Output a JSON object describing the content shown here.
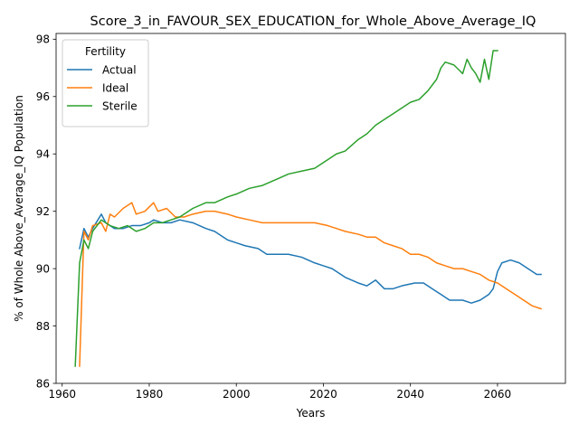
{
  "chart_data": {
    "type": "line",
    "title": "Score_3_in_FAVOUR_SEX_EDUCATION_for_Whole_Above_Average_IQ",
    "xlabel": "Years",
    "ylabel": "% of Whole Above_Average_IQ Population",
    "xlim": [
      1958.6,
      2075.6
    ],
    "ylim": [
      86.0,
      98.2
    ],
    "xticks": [
      1960,
      1980,
      2000,
      2020,
      2040,
      2060
    ],
    "yticks": [
      86,
      88,
      90,
      92,
      94,
      96,
      98
    ],
    "grid": false,
    "legend": {
      "title": "Fertility",
      "placement": "upper left"
    },
    "series": [
      {
        "name": "Actual",
        "color": "#1f77b4",
        "x": [
          1964,
          1965,
          1966,
          1967,
          1969,
          1970,
          1972,
          1974,
          1976,
          1978,
          1980,
          1981,
          1983,
          1985,
          1987,
          1990,
          1993,
          1995,
          1998,
          2000,
          2002,
          2005,
          2007,
          2009,
          2012,
          2015,
          2018,
          2020,
          2022,
          2025,
          2028,
          2030,
          2032,
          2034,
          2036,
          2038,
          2041,
          2043,
          2045,
          2047,
          2049,
          2052,
          2054,
          2056,
          2058,
          2059,
          2060,
          2061,
          2063,
          2065,
          2067,
          2069,
          2070
        ],
        "y": [
          90.7,
          91.4,
          91.1,
          91.4,
          91.9,
          91.6,
          91.4,
          91.4,
          91.5,
          91.5,
          91.6,
          91.7,
          91.6,
          91.6,
          91.7,
          91.6,
          91.4,
          91.3,
          91.0,
          90.9,
          90.8,
          90.7,
          90.5,
          90.5,
          90.5,
          90.4,
          90.2,
          90.1,
          90.0,
          89.7,
          89.5,
          89.4,
          89.6,
          89.3,
          89.3,
          89.4,
          89.5,
          89.5,
          89.3,
          89.1,
          88.9,
          88.9,
          88.8,
          88.9,
          89.1,
          89.3,
          89.9,
          90.2,
          90.3,
          90.2,
          90.0,
          89.8,
          89.8
        ]
      },
      {
        "name": "Ideal",
        "color": "#ff7f0e",
        "x": [
          1964,
          1965,
          1966,
          1967,
          1969,
          1970,
          1971,
          1972,
          1974,
          1976,
          1977,
          1979,
          1981,
          1982,
          1984,
          1986,
          1988,
          1990,
          1993,
          1995,
          1998,
          2000,
          2003,
          2006,
          2009,
          2012,
          2015,
          2018,
          2021,
          2023,
          2025,
          2028,
          2030,
          2032,
          2034,
          2036,
          2038,
          2040,
          2042,
          2044,
          2046,
          2048,
          2050,
          2052,
          2054,
          2056,
          2058,
          2060,
          2062,
          2064,
          2066,
          2068,
          2070
        ],
        "y": [
          86.6,
          91.3,
          91.0,
          91.5,
          91.6,
          91.3,
          91.9,
          91.8,
          92.1,
          92.3,
          91.9,
          92.0,
          92.3,
          92.0,
          92.1,
          91.8,
          91.8,
          91.9,
          92.0,
          92.0,
          91.9,
          91.8,
          91.7,
          91.6,
          91.6,
          91.6,
          91.6,
          91.6,
          91.5,
          91.4,
          91.3,
          91.2,
          91.1,
          91.1,
          90.9,
          90.8,
          90.7,
          90.5,
          90.5,
          90.4,
          90.2,
          90.1,
          90.0,
          90.0,
          89.9,
          89.8,
          89.6,
          89.5,
          89.3,
          89.1,
          88.9,
          88.7,
          88.6
        ]
      },
      {
        "name": "Sterile",
        "color": "#2ca02c",
        "x": [
          1963,
          1964,
          1965,
          1966,
          1967,
          1969,
          1971,
          1973,
          1975,
          1977,
          1979,
          1981,
          1983,
          1985,
          1987,
          1990,
          1993,
          1995,
          1998,
          2000,
          2003,
          2006,
          2009,
          2012,
          2015,
          2018,
          2021,
          2023,
          2025,
          2028,
          2030,
          2032,
          2034,
          2036,
          2038,
          2040,
          2042,
          2044,
          2046,
          2047,
          2048,
          2050,
          2052,
          2053,
          2054,
          2055,
          2056,
          2057,
          2058,
          2059,
          2060
        ],
        "y": [
          86.6,
          90.2,
          91.0,
          90.7,
          91.3,
          91.7,
          91.5,
          91.4,
          91.5,
          91.3,
          91.4,
          91.6,
          91.6,
          91.7,
          91.8,
          92.1,
          92.3,
          92.3,
          92.5,
          92.6,
          92.8,
          92.9,
          93.1,
          93.3,
          93.4,
          93.5,
          93.8,
          94.0,
          94.1,
          94.5,
          94.7,
          95.0,
          95.2,
          95.4,
          95.6,
          95.8,
          95.9,
          96.2,
          96.6,
          97.0,
          97.2,
          97.1,
          96.8,
          97.3,
          97.0,
          96.8,
          96.5,
          97.3,
          96.6,
          97.6,
          97.6
        ]
      }
    ]
  }
}
